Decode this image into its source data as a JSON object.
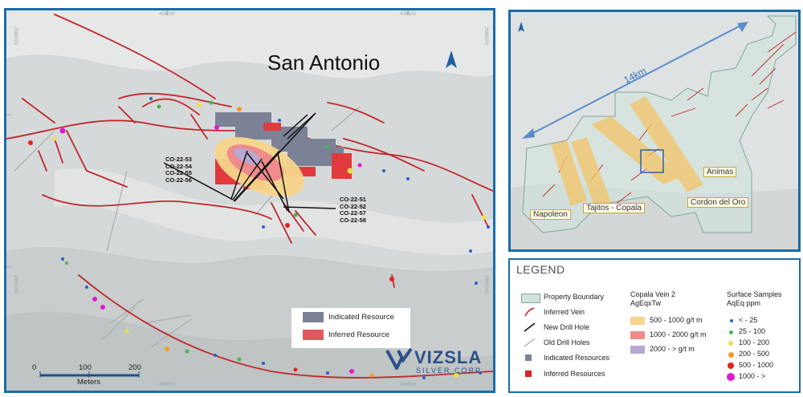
{
  "main_map": {
    "title": "San Antonio",
    "drill_labels_left": [
      "CO-22-53",
      "CO-22-54",
      "CO-22-55",
      "CO-22-56"
    ],
    "drill_labels_right": [
      "CO-22-51",
      "CO-22-52",
      "CO-22-57",
      "CO-22-58"
    ],
    "map_legend": {
      "indicated_label": "Indicated Resource",
      "inferred_label": "Inferred Resource"
    },
    "scale_bar": {
      "ticks": [
        "0",
        "100",
        "200"
      ],
      "unit": "Meters"
    },
    "logo": {
      "name": "VIZSLA",
      "tagline": "SILVER CORP"
    },
    "coords_top": [
      "408000",
      "408500"
    ],
    "coords_bottom": [
      "408000",
      "408500"
    ],
    "coords_left": [
      "2886500",
      "2886000"
    ],
    "coords_right": [
      "2886500",
      "2886000"
    ],
    "north_icon": "north-arrow-icon"
  },
  "inset_map": {
    "distance_label": "14km",
    "labels": [
      "Animas",
      "Napoleon",
      "Tajitos - Copala",
      "Cordon del Oro"
    ],
    "north_icon": "north-arrow-icon"
  },
  "legend": {
    "title": "LEGEND",
    "items": [
      {
        "label": "Property Boundary",
        "icon": "property-boundary-icon"
      },
      {
        "label": "Inferred Vein",
        "icon": "inferred-vein-icon"
      },
      {
        "label": "New Drill Hole",
        "icon": "new-drill-hole-icon"
      },
      {
        "label": "Old Drill Holes",
        "icon": "old-drill-holes-icon"
      },
      {
        "label": "Indicated Resources",
        "icon": "indicated-resources-icon"
      },
      {
        "label": "Inferred Resources",
        "icon": "inferred-resources-icon"
      }
    ],
    "vein_header": [
      "Copala Vein 2",
      "AgEqxTw"
    ],
    "vein_items": [
      {
        "label": "500 - 1000 g/t m",
        "color": "#f7d58a"
      },
      {
        "label": "1000 - 2000 g/t m",
        "color": "#ee8c8c"
      },
      {
        "label": "2000 - > g/t m",
        "color": "#b7a7d3"
      }
    ],
    "samples_header": [
      "Surface Samples",
      "AqEq ppm"
    ],
    "sample_items": [
      {
        "label": "< - 25",
        "color": "#2d5fc4"
      },
      {
        "label": "25 - 100",
        "color": "#47b84a"
      },
      {
        "label": "100 - 200",
        "color": "#ede04a"
      },
      {
        "label": "200 - 500",
        "color": "#f39b2b"
      },
      {
        "label": "500 - 1000",
        "color": "#e32222"
      },
      {
        "label": "1000 - >",
        "color": "#e11ad2"
      }
    ]
  }
}
